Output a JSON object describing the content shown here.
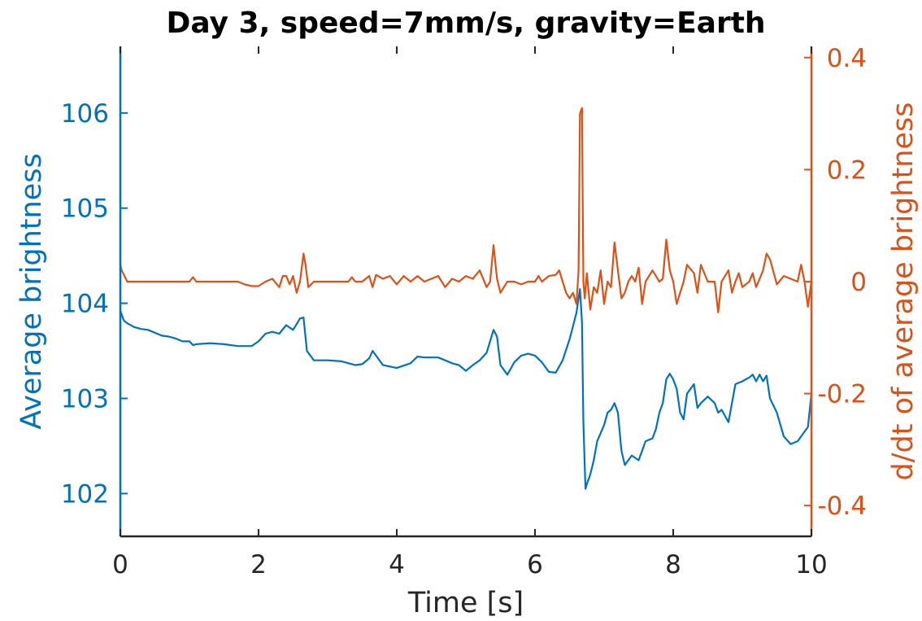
{
  "chart_data": {
    "type": "line",
    "title": "Day 3, speed=7mm/s, gravity=Earth",
    "xlabel": "Time [s]",
    "ylabel_left": "Average brightness",
    "ylabel_right": "d/dt of average brightness",
    "xlim": [
      0,
      10
    ],
    "ylim_left": [
      101.55,
      106.7
    ],
    "ylim_right": [
      -0.455,
      0.42
    ],
    "x_ticks": [
      0,
      2,
      4,
      6,
      8,
      10
    ],
    "x_tick_labels": [
      "0",
      "2",
      "4",
      "6",
      "8",
      "10"
    ],
    "y_left_ticks": [
      102,
      103,
      104,
      105,
      106
    ],
    "y_left_tick_labels": [
      "102",
      "103",
      "104",
      "105",
      "106"
    ],
    "y_right_ticks": [
      -0.4,
      -0.2,
      0,
      0.2,
      0.4
    ],
    "y_right_tick_labels": [
      "-0.4",
      "-0.2",
      "0",
      "0.2",
      "0.4"
    ],
    "grid": false,
    "colors": {
      "left": "#0072bd",
      "right": "#d95319",
      "axis": "#262626"
    },
    "series": [
      {
        "axis": "left",
        "x": [
          0,
          0.05,
          0.1,
          0.2,
          0.3,
          0.4,
          0.5,
          0.6,
          0.7,
          0.8,
          0.9,
          1.0,
          1.05,
          1.1,
          1.3,
          1.5,
          1.7,
          1.9,
          2.0,
          2.1,
          2.2,
          2.3,
          2.4,
          2.5,
          2.6,
          2.65,
          2.7,
          2.8,
          3.0,
          3.2,
          3.4,
          3.5,
          3.6,
          3.65,
          3.7,
          3.8,
          4.0,
          4.2,
          4.3,
          4.4,
          4.6,
          4.7,
          4.8,
          4.9,
          5.0,
          5.1,
          5.2,
          5.3,
          5.4,
          5.45,
          5.5,
          5.6,
          5.7,
          5.8,
          5.9,
          6.0,
          6.1,
          6.2,
          6.3,
          6.4,
          6.5,
          6.6,
          6.65,
          6.68,
          6.7,
          6.73,
          6.75,
          6.8,
          6.85,
          6.9,
          7.0,
          7.05,
          7.1,
          7.15,
          7.2,
          7.25,
          7.3,
          7.35,
          7.4,
          7.5,
          7.55,
          7.6,
          7.7,
          7.75,
          7.8,
          7.85,
          7.9,
          7.95,
          8.0,
          8.05,
          8.1,
          8.15,
          8.2,
          8.3,
          8.35,
          8.4,
          8.5,
          8.6,
          8.65,
          8.7,
          8.8,
          8.9,
          9.0,
          9.1,
          9.15,
          9.2,
          9.25,
          9.3,
          9.35,
          9.4,
          9.5,
          9.6,
          9.7,
          9.8,
          9.9,
          9.95,
          10.0
        ],
        "y": [
          103.92,
          103.82,
          103.79,
          103.75,
          103.73,
          103.72,
          103.69,
          103.66,
          103.65,
          103.63,
          103.6,
          103.6,
          103.56,
          103.57,
          103.58,
          103.57,
          103.55,
          103.55,
          103.6,
          103.68,
          103.7,
          103.68,
          103.77,
          103.72,
          103.84,
          103.85,
          103.5,
          103.4,
          103.4,
          103.39,
          103.35,
          103.36,
          103.42,
          103.5,
          103.45,
          103.35,
          103.32,
          103.37,
          103.44,
          103.43,
          103.43,
          103.4,
          103.37,
          103.35,
          103.29,
          103.35,
          103.4,
          103.48,
          103.72,
          103.65,
          103.35,
          103.25,
          103.38,
          103.45,
          103.47,
          103.45,
          103.38,
          103.28,
          103.27,
          103.4,
          103.62,
          103.9,
          104.15,
          103.8,
          102.75,
          102.05,
          102.1,
          102.2,
          102.35,
          102.55,
          102.72,
          102.85,
          102.88,
          102.95,
          102.85,
          102.45,
          102.3,
          102.35,
          102.4,
          102.35,
          102.45,
          102.55,
          102.58,
          102.68,
          102.85,
          102.95,
          103.2,
          103.26,
          103.2,
          103.1,
          102.85,
          102.78,
          103.05,
          103.15,
          102.9,
          102.95,
          103.02,
          102.95,
          102.85,
          102.88,
          102.75,
          103.15,
          103.18,
          103.22,
          103.25,
          103.18,
          103.25,
          103.18,
          103.24,
          103.0,
          102.85,
          102.6,
          102.52,
          102.55,
          102.65,
          102.7,
          103.05
        ]
      },
      {
        "axis": "right",
        "x": [
          0,
          0.02,
          0.1,
          0.3,
          0.5,
          0.7,
          0.9,
          1.0,
          1.05,
          1.1,
          1.3,
          1.5,
          1.7,
          1.8,
          1.9,
          2.0,
          2.1,
          2.2,
          2.3,
          2.35,
          2.4,
          2.45,
          2.5,
          2.55,
          2.6,
          2.65,
          2.68,
          2.72,
          2.8,
          3.0,
          3.2,
          3.3,
          3.35,
          3.4,
          3.5,
          3.6,
          3.65,
          3.7,
          3.8,
          3.9,
          4.0,
          4.1,
          4.2,
          4.3,
          4.4,
          4.5,
          4.6,
          4.7,
          4.8,
          4.9,
          5.0,
          5.1,
          5.2,
          5.3,
          5.35,
          5.4,
          5.45,
          5.5,
          5.6,
          5.7,
          5.8,
          5.9,
          6.0,
          6.05,
          6.1,
          6.2,
          6.3,
          6.35,
          6.4,
          6.45,
          6.5,
          6.55,
          6.6,
          6.63,
          6.65,
          6.68,
          6.7,
          6.72,
          6.75,
          6.8,
          6.85,
          6.9,
          6.95,
          7.0,
          7.05,
          7.1,
          7.15,
          7.2,
          7.25,
          7.3,
          7.35,
          7.4,
          7.45,
          7.5,
          7.55,
          7.6,
          7.7,
          7.8,
          7.85,
          7.9,
          7.95,
          8.0,
          8.05,
          8.1,
          8.15,
          8.2,
          8.3,
          8.35,
          8.4,
          8.5,
          8.6,
          8.65,
          8.7,
          8.8,
          8.85,
          8.9,
          8.95,
          9.0,
          9.1,
          9.15,
          9.2,
          9.25,
          9.3,
          9.35,
          9.4,
          9.5,
          9.6,
          9.7,
          9.8,
          9.85,
          9.9,
          9.95,
          10.0
        ],
        "y": [
          0.03,
          0.02,
          0.0,
          0.0,
          0.0,
          0.0,
          0.0,
          0.0,
          0.008,
          0.0,
          0.0,
          0.0,
          0.0,
          -0.005,
          -0.008,
          -0.008,
          0.0,
          0.005,
          -0.01,
          0.01,
          0.01,
          -0.005,
          0.01,
          -0.02,
          0.0,
          0.05,
          0.03,
          -0.01,
          0.0,
          0.0,
          0.0,
          0.0,
          0.008,
          0.0,
          0.0,
          0.01,
          -0.01,
          0.012,
          0.005,
          0.01,
          -0.005,
          0.01,
          0.0,
          0.01,
          0.0,
          0.005,
          0.01,
          -0.01,
          0.005,
          0.0,
          0.01,
          0.005,
          0.02,
          -0.01,
          0.0,
          0.065,
          0.005,
          -0.02,
          0.0,
          0.0,
          -0.005,
          0.0,
          0.0,
          0.01,
          0.0,
          0.01,
          0.012,
          0.02,
          0.0,
          -0.02,
          -0.03,
          -0.02,
          -0.04,
          0.02,
          0.3,
          0.31,
          0.0,
          -0.03,
          0.015,
          -0.05,
          -0.01,
          -0.02,
          0.02,
          -0.04,
          0.0,
          -0.01,
          0.07,
          0.02,
          -0.03,
          -0.02,
          0.0,
          0.01,
          0.0,
          0.025,
          -0.04,
          0.0,
          0.02,
          0.0,
          0.005,
          0.075,
          0.02,
          0.0,
          -0.04,
          -0.02,
          0.0,
          0.03,
          0.015,
          -0.02,
          0.03,
          0.0,
          0.0,
          -0.055,
          0.0,
          0.02,
          -0.02,
          0.0,
          0.015,
          -0.01,
          0.0,
          0.015,
          -0.01,
          0.005,
          0.02,
          0.05,
          0.04,
          -0.005,
          0.01,
          0.005,
          0.0,
          0.03,
          0.0,
          -0.045,
          0.0
        ]
      }
    ]
  }
}
